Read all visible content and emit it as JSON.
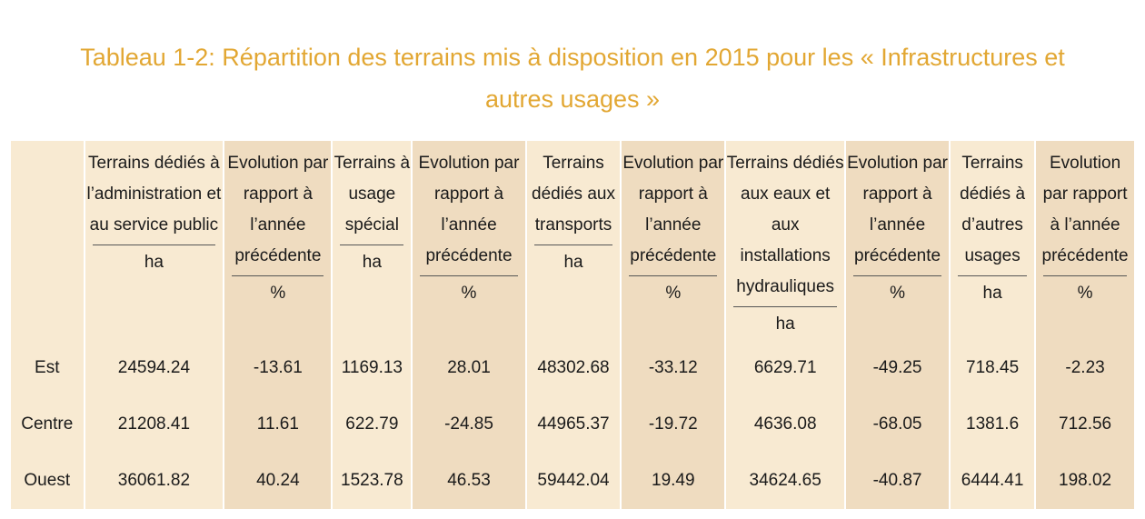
{
  "title_line1": "Tableau 1-2: Répartition des terrains mis à disposition en 2015 pour les « Infrastructures et",
  "title_line2": "autres usages »",
  "columns": [
    {
      "label": "Terrains dédiés à l’administration et au service public",
      "unit": "ha"
    },
    {
      "label": "Evolution par rapport à l’année précédente",
      "unit": "%"
    },
    {
      "label": "Terrains à usage spécial",
      "unit": "ha"
    },
    {
      "label": "Evolution par rapport à l’année précédente",
      "unit": "%"
    },
    {
      "label": "Terrains dédiés aux transports",
      "unit": "ha"
    },
    {
      "label": "Evolution par rapport à l’année précédente",
      "unit": "%"
    },
    {
      "label": "Terrains dédiés aux eaux et aux installations hydrauliques",
      "unit": "ha"
    },
    {
      "label": "Evolution par rapport à l’année précédente",
      "unit": "%"
    },
    {
      "label": "Terrains dédiés à d’autres usages",
      "unit": "ha"
    },
    {
      "label": "Evolution par rapport à l’année précédente",
      "unit": "%"
    }
  ],
  "rows": [
    {
      "label": "Est",
      "values": [
        "24594.24",
        "-13.61",
        "1169.13",
        "28.01",
        "48302.68",
        "-33.12",
        "6629.71",
        "-49.25",
        "718.45",
        "-2.23"
      ]
    },
    {
      "label": "Centre",
      "values": [
        "21208.41",
        "11.61",
        "622.79",
        "-24.85",
        "44965.37",
        "-19.72",
        "4636.08",
        "-68.05",
        "1381.6",
        "712.56"
      ]
    },
    {
      "label": "Ouest",
      "values": [
        "36061.82",
        "40.24",
        "1523.78",
        "46.53",
        "59442.04",
        "19.49",
        "34624.65",
        "-40.87",
        "6444.41",
        "198.02"
      ]
    }
  ],
  "colors": {
    "title": "#e2a733",
    "cell_light": "#f8ead2",
    "cell_dark": "#efdcc0"
  }
}
